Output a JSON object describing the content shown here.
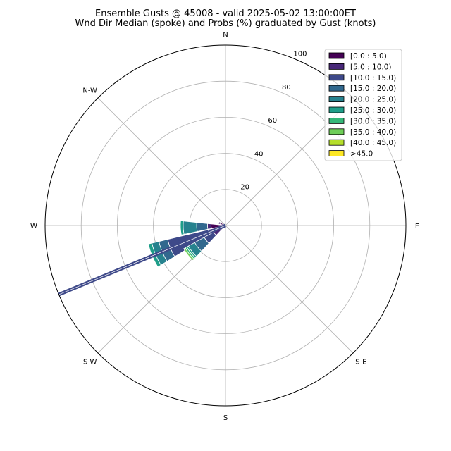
{
  "chart_data": {
    "type": "windrose",
    "title": "Ensemble Gusts @ 45008 - valid 2025-05-02 13:00:00ET",
    "subtitle": "Wnd Dir Median (spoke) and Probs (%) graduated by Gust (knots)",
    "directions": [
      "N",
      "N-E",
      "E",
      "S-E",
      "S",
      "S-W",
      "W",
      "N-W"
    ],
    "radial_ticks": [
      20,
      40,
      60,
      80,
      100
    ],
    "rmax": 100,
    "grid": true,
    "legend_position": "top-right",
    "bins": [
      {
        "label": "[0.0 : 5.0)",
        "color": "#440154"
      },
      {
        "label": "[5.0 : 10.0)",
        "color": "#482878"
      },
      {
        "label": "[10.0 : 15.0)",
        "color": "#3e4989"
      },
      {
        "label": "[15.0 : 20.0)",
        "color": "#31688e"
      },
      {
        "label": "[20.0 : 25.0)",
        "color": "#26828e"
      },
      {
        "label": "[25.0 : 30.0)",
        "color": "#1f9e89"
      },
      {
        "label": "[30.0 : 35.0)",
        "color": "#35b779"
      },
      {
        "label": "[35.0 : 40.0)",
        "color": "#6ece58"
      },
      {
        "label": "[40.0 : 45.0)",
        "color": "#b5de2b"
      },
      {
        "label": ">45.0",
        "color": "#fde725"
      }
    ],
    "sectors": [
      {
        "direction_deg": 267,
        "values": [
          8,
          2,
          0,
          6,
          7.5,
          1.5,
          0,
          0,
          0,
          0
        ]
      },
      {
        "direction_deg": 247.5,
        "values": [
          3,
          7,
          23,
          5,
          4,
          2,
          0,
          0,
          0,
          0
        ]
      },
      {
        "direction_deg": 232,
        "values": [
          3.5,
          4,
          6,
          6,
          4,
          1,
          1,
          1,
          0,
          0
        ]
      },
      {
        "direction_deg": 292,
        "values": [
          3,
          1,
          0,
          0,
          0,
          0,
          0,
          0,
          0,
          0
        ]
      }
    ],
    "median_direction_deg": 247.5,
    "median_spoke_value": 100
  }
}
